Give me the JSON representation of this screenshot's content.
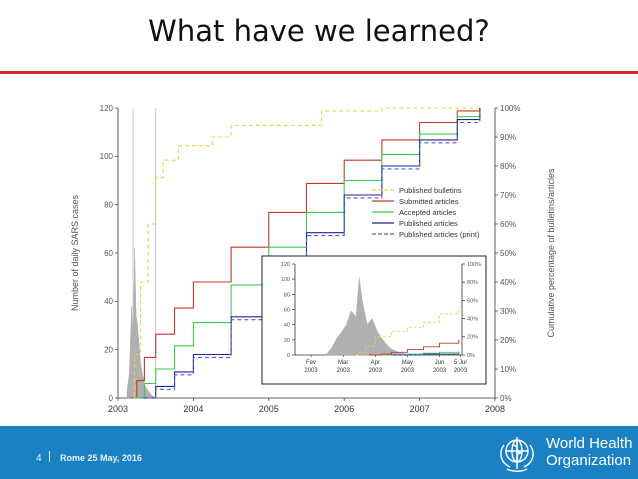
{
  "slide": {
    "title": "What have we learned?",
    "page_number": "4",
    "footer_text": "Rome   25 May,  2016",
    "logo": {
      "name": "who-logo",
      "text_line1": "World Health",
      "text_line2": "Organization"
    }
  },
  "colors": {
    "accent_red": "#d9232a",
    "footer_blue": "#1a82c4",
    "published_bulletins": "#e8d44a",
    "submitted_articles": "#c0392b",
    "accepted_articles": "#3fc94a",
    "published_articles": "#22229a",
    "published_articles_print": "#4a5fc9",
    "daily_cases": "#b0b0b0"
  },
  "chart_data": [
    {
      "type": "line",
      "title": "",
      "xlabel": "",
      "ylabel": "Number of daily SARS cases",
      "y2label": "Cumulative percentage of bulletins/articles",
      "xlim": [
        2003,
        2008
      ],
      "ylim": [
        0,
        120
      ],
      "y2lim": [
        0,
        100
      ],
      "x_ticks": [
        "2003",
        "2004",
        "2005",
        "2006",
        "2007",
        "2008"
      ],
      "y_ticks": [
        "0",
        "20",
        "40",
        "60",
        "80",
        "100",
        "120"
      ],
      "y2_ticks": [
        "0%",
        "10%",
        "20%",
        "30%",
        "40%",
        "50%",
        "60%",
        "70%",
        "80%",
        "90%",
        "100%"
      ],
      "grid": false,
      "legend_position": "right",
      "vertical_markers": [
        2003.2,
        2003.5
      ],
      "daily_cases": {
        "x": [
          2003.12,
          2003.15,
          2003.18,
          2003.2,
          2003.22,
          2003.24,
          2003.26,
          2003.28,
          2003.3,
          2003.33,
          2003.36,
          2003.4,
          2003.45,
          2003.5
        ],
        "values": [
          3,
          10,
          38,
          24,
          62,
          34,
          30,
          22,
          14,
          9,
          5,
          3,
          1,
          0
        ]
      },
      "series": [
        {
          "name": "Published bulletins",
          "style": "dashed",
          "x": [
            2003.15,
            2003.22,
            2003.3,
            2003.4,
            2003.5,
            2003.6,
            2003.8,
            2004.0,
            2004.25,
            2004.5,
            2005.0,
            2005.5,
            2005.7,
            2006.5,
            2007.0,
            2007.8
          ],
          "y": [
            0,
            15,
            40,
            60,
            76,
            82,
            87,
            87,
            90,
            94,
            94,
            94,
            99,
            100,
            100,
            100
          ]
        },
        {
          "name": "Submitted articles",
          "style": "solid",
          "x": [
            2003.15,
            2003.25,
            2003.35,
            2003.5,
            2003.75,
            2004.0,
            2004.5,
            2005.0,
            2005.5,
            2006.0,
            2006.5,
            2007.0,
            2007.5,
            2007.8
          ],
          "y": [
            0,
            6,
            14,
            22,
            31,
            40,
            52,
            64,
            74,
            82,
            89,
            95,
            99,
            100
          ]
        },
        {
          "name": "Accepted articles",
          "style": "solid",
          "x": [
            2003.2,
            2003.35,
            2003.5,
            2003.75,
            2004.0,
            2004.5,
            2005.0,
            2005.5,
            2006.0,
            2006.5,
            2007.0,
            2007.5,
            2007.8
          ],
          "y": [
            0,
            5,
            10,
            18,
            26,
            39,
            52,
            64,
            75,
            84,
            91,
            97,
            100
          ]
        },
        {
          "name": "Published articles",
          "style": "solid",
          "x": [
            2003.3,
            2003.5,
            2003.75,
            2004.0,
            2004.5,
            2005.0,
            2005.5,
            2006.0,
            2006.5,
            2007.0,
            2007.5,
            2007.8
          ],
          "y": [
            0,
            4,
            9,
            15,
            28,
            43,
            57,
            70,
            80,
            89,
            96,
            100
          ]
        },
        {
          "name": "Published articles (print)",
          "style": "dashed",
          "x": [
            2003.3,
            2003.5,
            2003.75,
            2004.0,
            2004.5,
            2005.0,
            2005.5,
            2006.0,
            2006.5,
            2007.0,
            2007.5,
            2007.8
          ],
          "y": [
            0,
            3,
            8,
            14,
            27,
            42,
            56,
            69,
            79,
            88,
            95,
            100
          ]
        }
      ]
    },
    {
      "type": "line",
      "title": "",
      "xlim": [
        0,
        5.2
      ],
      "ylim": [
        0,
        120
      ],
      "y2lim": [
        0,
        100
      ],
      "x_ticks": [
        {
          "at": 0.5,
          "label": "Fev",
          "sub": "2003"
        },
        {
          "at": 1.5,
          "label": "Mar",
          "sub": "2003"
        },
        {
          "at": 2.5,
          "label": "Apr",
          "sub": "2003"
        },
        {
          "at": 3.5,
          "label": "May",
          "sub": "2003"
        },
        {
          "at": 4.5,
          "label": "Jun",
          "sub": "2003"
        },
        {
          "at": 5.15,
          "label": "5 Jul",
          "sub": "2003"
        }
      ],
      "y_ticks": [
        "0",
        "20",
        "40",
        "60",
        "80",
        "100",
        "120"
      ],
      "y2_ticks": [
        "0%",
        "20%",
        "40%",
        "60%",
        "80%",
        "100%"
      ],
      "daily_cases": {
        "x": [
          1.0,
          1.15,
          1.3,
          1.45,
          1.6,
          1.75,
          1.9,
          2.0,
          2.1,
          2.25,
          2.4,
          2.55,
          2.7,
          2.85,
          3.0,
          3.2,
          3.5
        ],
        "values": [
          2,
          10,
          22,
          30,
          40,
          58,
          50,
          102,
          70,
          40,
          48,
          32,
          22,
          14,
          8,
          4,
          1
        ]
      },
      "series": [
        {
          "name": "Published bulletins",
          "style": "dashed",
          "x": [
            1.9,
            2.0,
            2.2,
            2.5,
            3.0,
            3.5,
            4.0,
            4.5,
            5.1
          ],
          "y": [
            0,
            3,
            10,
            20,
            26,
            30,
            36,
            45,
            53
          ]
        },
        {
          "name": "Submitted articles",
          "style": "solid",
          "x": [
            2.3,
            2.7,
            3.0,
            3.5,
            4.0,
            4.5,
            5.1
          ],
          "y": [
            0,
            1,
            3,
            6,
            9,
            13,
            17
          ]
        },
        {
          "name": "Accepted articles",
          "style": "solid",
          "x": [
            2.8,
            3.5,
            4.0,
            4.5,
            5.1
          ],
          "y": [
            0,
            1,
            2,
            3,
            4
          ]
        },
        {
          "name": "Published articles",
          "style": "solid",
          "x": [
            3.0,
            4.0,
            5.1
          ],
          "y": [
            0,
            1,
            2
          ]
        },
        {
          "name": "Published articles (print)",
          "style": "dashed",
          "x": [
            3.0,
            4.0,
            5.1
          ],
          "y": [
            0,
            1,
            1.5
          ]
        }
      ]
    }
  ]
}
